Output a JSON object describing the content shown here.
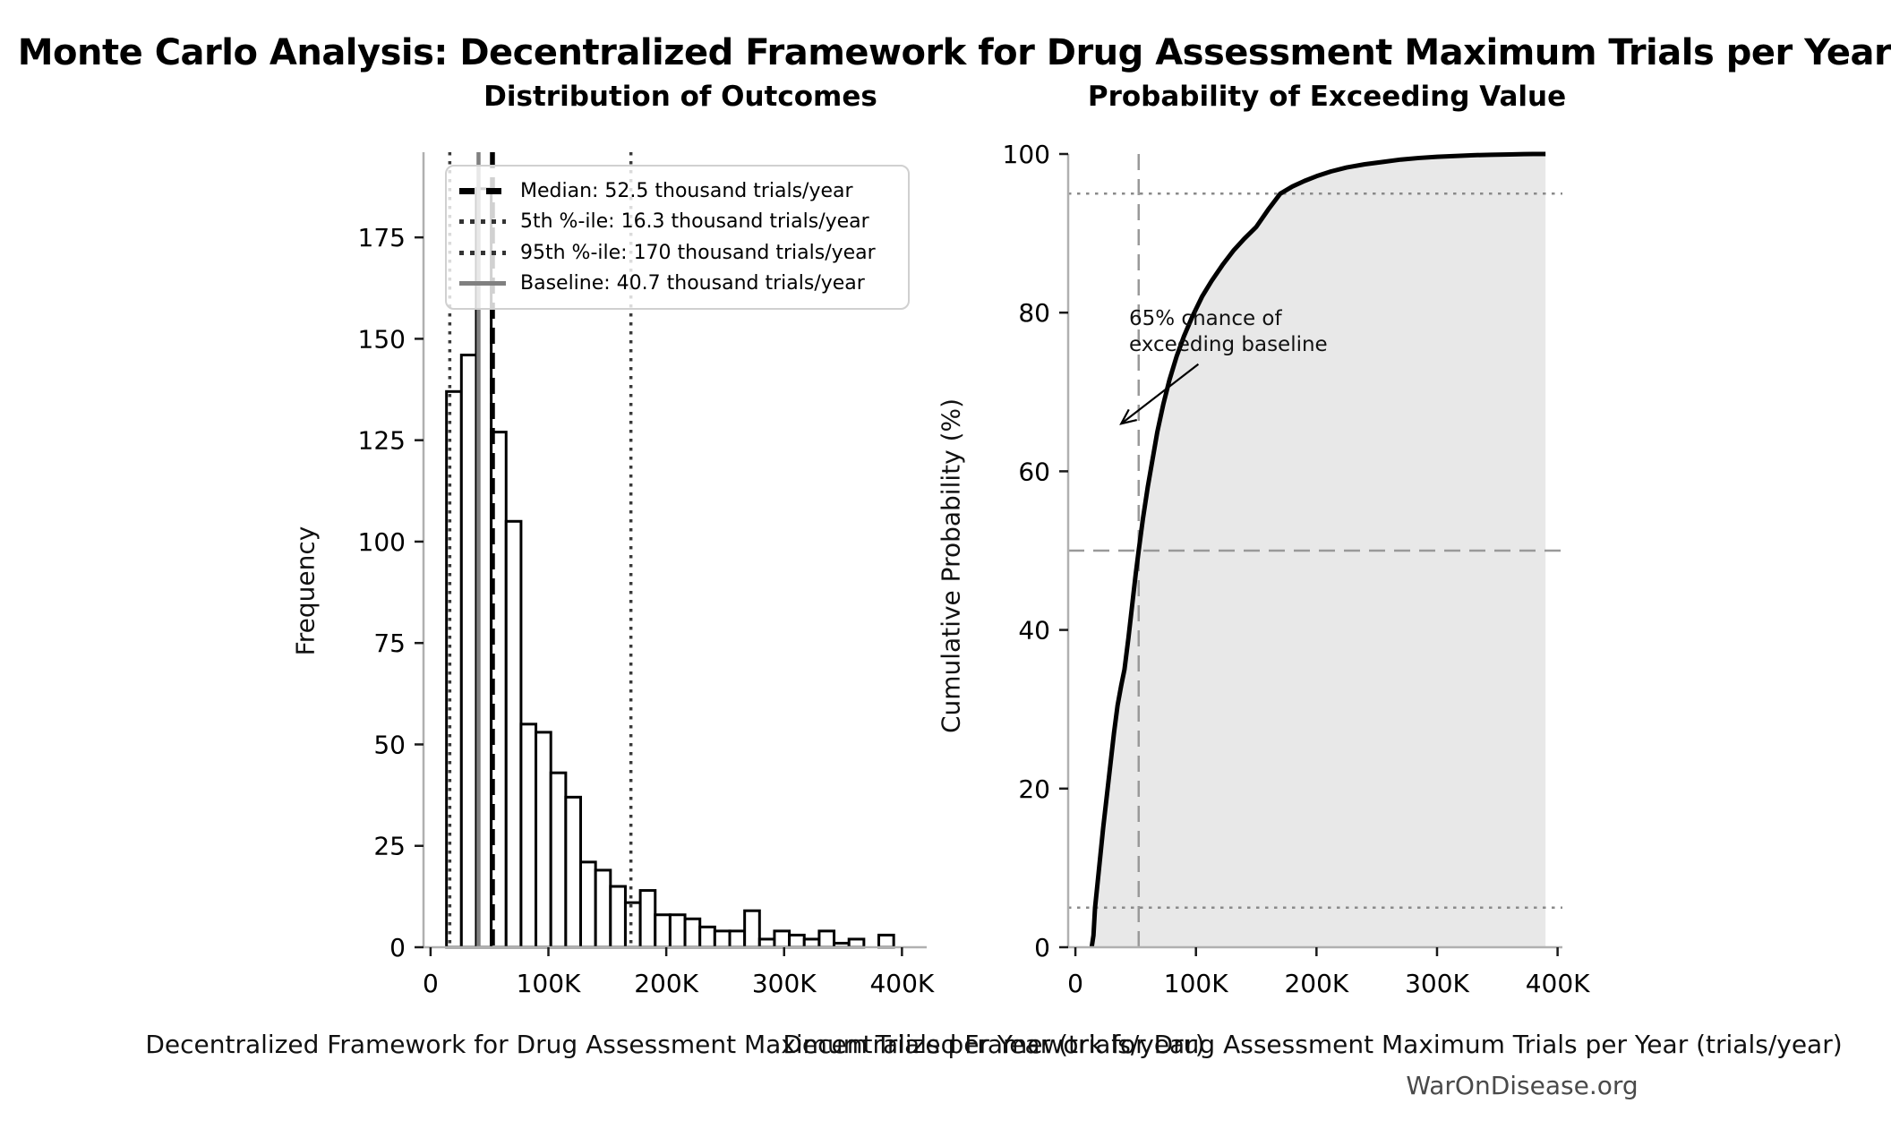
{
  "figure": {
    "title": "Monte Carlo Analysis: Decentralized Framework for Drug Assessment Maximum Trials per Year",
    "watermark": "WarOnDisease.org",
    "background_color": "#ffffff"
  },
  "legend": {
    "items": [
      {
        "label": "Median: 52.5 thousand trials/year",
        "style": "dashed-black",
        "color": "#000000"
      },
      {
        "label": "5th %-ile: 16.3 thousand trials/year",
        "style": "dotted-dark",
        "color": "#333333"
      },
      {
        "label": "95th %-ile: 170 thousand trials/year",
        "style": "dotted-dark",
        "color": "#333333"
      },
      {
        "label": "Baseline: 40.7 thousand trials/year",
        "style": "solid-gray",
        "color": "#808080"
      }
    ]
  },
  "chart_data": [
    {
      "type": "bar",
      "title": "Distribution of Outcomes",
      "xlabel": "Decentralized Framework for Drug Assessment Maximum Trials per Year (trials/year)",
      "ylabel": "Frequency",
      "x_unit": "thousand trials/year",
      "bin_start": 13.5,
      "bin_width": 12.65,
      "counts": [
        137,
        146,
        187,
        127,
        105,
        55,
        53,
        43,
        37,
        21,
        19,
        15,
        11,
        14,
        8,
        8,
        7,
        5,
        4,
        4,
        9,
        2,
        4,
        3,
        2,
        4,
        1,
        2,
        0,
        3
      ],
      "bar_fill": "#ffffff",
      "bar_edge": "#000000",
      "xlim": [
        -6,
        421
      ],
      "ylim": [
        0,
        196
      ],
      "grid": false,
      "xticks": {
        "values": [
          0,
          100,
          200,
          300,
          400
        ],
        "labels": [
          "0",
          "100K",
          "200K",
          "300K",
          "400K"
        ]
      },
      "yticks": {
        "values": [
          0,
          25,
          50,
          75,
          100,
          125,
          150,
          175
        ],
        "labels": [
          "0",
          "25",
          "50",
          "75",
          "100",
          "125",
          "150",
          "175"
        ]
      },
      "vlines": [
        {
          "name": "percentile-5",
          "x": 16.3,
          "style": "dotted",
          "color": "#3a3a3a",
          "width": 3.5
        },
        {
          "name": "baseline",
          "x": 40.7,
          "style": "solid",
          "color": "#808080",
          "width": 4.5
        },
        {
          "name": "median",
          "x": 52.5,
          "style": "dashed",
          "color": "#000000",
          "width": 5.5
        },
        {
          "name": "percentile-95",
          "x": 170,
          "style": "dotted",
          "color": "#3a3a3a",
          "width": 3.5
        }
      ],
      "legend_position": "upper left"
    },
    {
      "type": "line",
      "title": "Probability of Exceeding Value",
      "xlabel": "Decentralized Framework for Drug Assessment Maximum Trials per Year (trials/year)",
      "ylabel": "Cumulative Probability (%)",
      "x_unit": "thousand trials/year",
      "line_color": "#000000",
      "fill_color": "#e8e8e8",
      "fill_under_curve": true,
      "xlim": [
        -6,
        404
      ],
      "ylim": [
        0,
        100
      ],
      "grid": false,
      "xticks": {
        "values": [
          0,
          100,
          200,
          300,
          400
        ],
        "labels": [
          "0",
          "100K",
          "200K",
          "300K",
          "400K"
        ]
      },
      "yticks": {
        "values": [
          0,
          20,
          40,
          60,
          80,
          100
        ],
        "labels": [
          "0",
          "20",
          "40",
          "60",
          "80",
          "100"
        ]
      },
      "points": [
        [
          13.5,
          0
        ],
        [
          15,
          1.5
        ],
        [
          16.3,
          5
        ],
        [
          18,
          7.5
        ],
        [
          20,
          10.5
        ],
        [
          23,
          15
        ],
        [
          26,
          19
        ],
        [
          29,
          23
        ],
        [
          32,
          27
        ],
        [
          35,
          30.5
        ],
        [
          38,
          33
        ],
        [
          40.7,
          35
        ],
        [
          44,
          39
        ],
        [
          47,
          43
        ],
        [
          50,
          47
        ],
        [
          52.5,
          50
        ],
        [
          56,
          54
        ],
        [
          60,
          58
        ],
        [
          64,
          61.5
        ],
        [
          68,
          65
        ],
        [
          73,
          68.5
        ],
        [
          78,
          71.5
        ],
        [
          84,
          74.5
        ],
        [
          90,
          77
        ],
        [
          97,
          79.5
        ],
        [
          105,
          82
        ],
        [
          113,
          84
        ],
        [
          122,
          86
        ],
        [
          131,
          87.8
        ],
        [
          140,
          89.3
        ],
        [
          150,
          90.8
        ],
        [
          160,
          93
        ],
        [
          170,
          95
        ],
        [
          180,
          95.9
        ],
        [
          190,
          96.6
        ],
        [
          200,
          97.2
        ],
        [
          212,
          97.8
        ],
        [
          225,
          98.3
        ],
        [
          240,
          98.7
        ],
        [
          255,
          99.0
        ],
        [
          270,
          99.3
        ],
        [
          285,
          99.5
        ],
        [
          300,
          99.65
        ],
        [
          315,
          99.75
        ],
        [
          330,
          99.85
        ],
        [
          345,
          99.9
        ],
        [
          360,
          99.95
        ],
        [
          372,
          99.98
        ],
        [
          380,
          100
        ],
        [
          390,
          100
        ]
      ],
      "hlines": [
        {
          "name": "median-probability",
          "y": 50,
          "style": "dashed",
          "color": "#999999",
          "width": 2.5
        },
        {
          "name": "percentile-95-probability",
          "y": 95,
          "style": "dotted",
          "color": "#8a8a8a",
          "width": 2.5
        },
        {
          "name": "percentile-5-probability",
          "y": 5,
          "style": "dotted",
          "color": "#8a8a8a",
          "width": 2.5
        }
      ],
      "vlines": [
        {
          "name": "median-value",
          "x": 52.5,
          "style": "dashed",
          "color": "#999999",
          "width": 2.5
        }
      ],
      "annotation": {
        "line1": "65% chance of",
        "line2": "exceeding baseline",
        "arrow_tip": [
          38,
          66
        ],
        "arrow_tail": [
          102,
          73.5
        ]
      }
    }
  ]
}
